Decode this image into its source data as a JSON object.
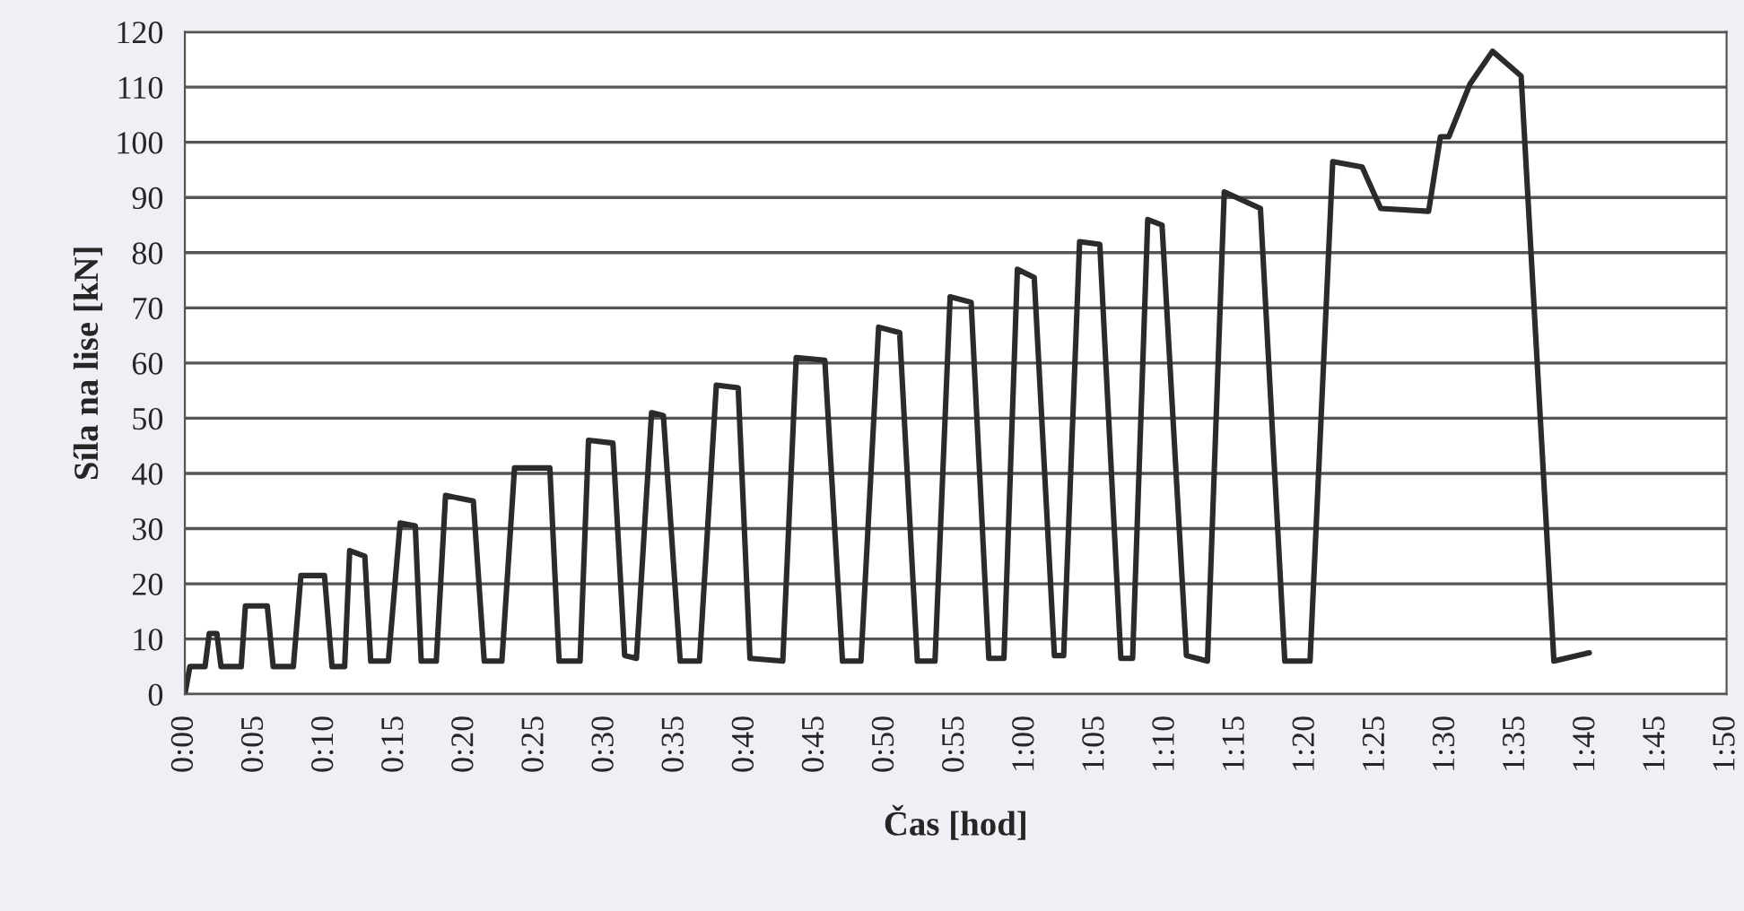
{
  "chart_data": {
    "type": "line",
    "xlabel": "Čas [hod]",
    "ylabel": "Síla na lise [kN]",
    "xlim": [
      0,
      1.8333
    ],
    "ylim": [
      0,
      120
    ],
    "xticks": [
      {
        "value": 0,
        "label": "0:00"
      },
      {
        "value": 0.0833,
        "label": "0:05"
      },
      {
        "value": 0.1667,
        "label": "0:10"
      },
      {
        "value": 0.25,
        "label": "0:15"
      },
      {
        "value": 0.3333,
        "label": "0:20"
      },
      {
        "value": 0.4167,
        "label": "0:25"
      },
      {
        "value": 0.5,
        "label": "0:30"
      },
      {
        "value": 0.5833,
        "label": "0:35"
      },
      {
        "value": 0.6667,
        "label": "0:40"
      },
      {
        "value": 0.75,
        "label": "0:45"
      },
      {
        "value": 0.8333,
        "label": "0:50"
      },
      {
        "value": 0.9167,
        "label": "0:55"
      },
      {
        "value": 1,
        "label": "1:00"
      },
      {
        "value": 1.0833,
        "label": "1:05"
      },
      {
        "value": 1.1667,
        "label": "1:10"
      },
      {
        "value": 1.25,
        "label": "1:15"
      },
      {
        "value": 1.3333,
        "label": "1:20"
      },
      {
        "value": 1.4167,
        "label": "1:25"
      },
      {
        "value": 1.5,
        "label": "1:30"
      },
      {
        "value": 1.5833,
        "label": "1:35"
      },
      {
        "value": 1.6667,
        "label": "1:40"
      },
      {
        "value": 1.75,
        "label": "1:45"
      },
      {
        "value": 1.8333,
        "label": "1:50"
      }
    ],
    "yticks": [
      0,
      10,
      20,
      30,
      40,
      50,
      60,
      70,
      80,
      90,
      100,
      110,
      120
    ],
    "grid": "y",
    "marker": "none",
    "line_style": "solid",
    "series": [
      {
        "color": "#2b2b2b",
        "x": [
          0,
          0.006,
          0.024,
          0.029,
          0.038,
          0.043,
          0.067,
          0.072,
          0.098,
          0.105,
          0.129,
          0.138,
          0.166,
          0.175,
          0.19,
          0.196,
          0.214,
          0.221,
          0.242,
          0.256,
          0.274,
          0.281,
          0.299,
          0.31,
          0.343,
          0.356,
          0.377,
          0.392,
          0.434,
          0.445,
          0.47,
          0.48,
          0.509,
          0.523,
          0.537,
          0.555,
          0.569,
          0.589,
          0.612,
          0.632,
          0.658,
          0.672,
          0.711,
          0.727,
          0.761,
          0.782,
          0.804,
          0.825,
          0.85,
          0.871,
          0.892,
          0.91,
          0.935,
          0.956,
          0.974,
          0.99,
          1.01,
          1.034,
          1.045,
          1.064,
          1.088,
          1.113,
          1.127,
          1.145,
          1.162,
          1.191,
          1.216,
          1.236,
          1.279,
          1.308,
          1.338,
          1.365,
          1.4,
          1.422,
          1.479,
          1.493,
          1.503,
          1.528,
          1.555,
          1.589,
          1.628,
          1.67
        ],
        "values": [
          0,
          5,
          5,
          11,
          11,
          5,
          5,
          16,
          16,
          5,
          5,
          21.5,
          21.5,
          5,
          5,
          26,
          25,
          6,
          6,
          31,
          30.5,
          6,
          6,
          36,
          35,
          6,
          6,
          41,
          41,
          6,
          6,
          46,
          45.5,
          7,
          6.5,
          51,
          50.5,
          6,
          6,
          56,
          55.5,
          6.5,
          6,
          61,
          60.5,
          6,
          6,
          66.5,
          65.5,
          6,
          6,
          72,
          71,
          6.5,
          6.5,
          77,
          75.5,
          7,
          7,
          82,
          81.5,
          6.5,
          6.5,
          86,
          85,
          7,
          6,
          91,
          88,
          6,
          6,
          96.5,
          95.5,
          88,
          87.5,
          101,
          101,
          110.5,
          116.5,
          112,
          6,
          7.5
        ]
      }
    ]
  }
}
